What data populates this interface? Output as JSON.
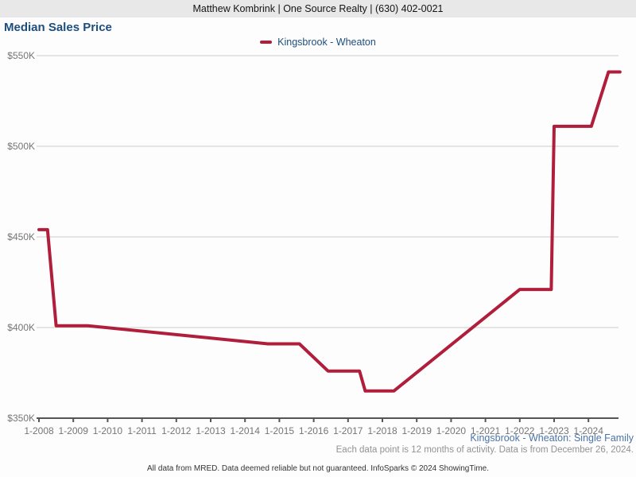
{
  "header": {
    "contact_line": "Matthew Kombrink | One Source Realty | (630) 402-0021"
  },
  "page": {
    "title": "Median Sales Price"
  },
  "legend": {
    "series_label": "Kingsbrook - Wheaton",
    "swatch_color": "#b01e3c"
  },
  "footnotes": {
    "series_scope": "Kingsbrook - Wheaton: Single Family",
    "data_note": "Each data point is 12 months of activity. Data is from December 26, 2024.",
    "disclaimer": "All data from MRED. Data deemed reliable but not guaranteed. InfoSparks © 2024 ShowingTime."
  },
  "chart_data": {
    "type": "line",
    "title": "Median Sales Price",
    "y_unit": "thousand USD",
    "ylim": [
      350,
      550
    ],
    "y_tick_values": [
      350,
      400,
      450,
      500,
      550
    ],
    "y_ticks": [
      "$350K",
      "$400K",
      "$450K",
      "$500K",
      "$550K"
    ],
    "x_ticks": [
      "1-2008",
      "1-2009",
      "1-2010",
      "1-2011",
      "1-2012",
      "1-2013",
      "1-2014",
      "1-2015",
      "1-2016",
      "1-2017",
      "1-2018",
      "1-2019",
      "1-2020",
      "1-2021",
      "1-2022",
      "1-2023",
      "1-2024"
    ],
    "x_range": [
      "2008-01",
      "2024-12"
    ],
    "grid": "horizontal",
    "legend_position": "top-center",
    "series": [
      {
        "name": "Kingsbrook - Wheaton",
        "color": "#b01e3c",
        "points": [
          [
            "2008-01",
            454
          ],
          [
            "2008-04",
            454
          ],
          [
            "2008-07",
            401
          ],
          [
            "2009-06",
            401
          ],
          [
            "2014-09",
            391
          ],
          [
            "2015-08",
            391
          ],
          [
            "2016-06",
            376
          ],
          [
            "2017-05",
            376
          ],
          [
            "2017-07",
            365
          ],
          [
            "2018-05",
            365
          ],
          [
            "2022-01",
            421
          ],
          [
            "2022-12",
            421
          ],
          [
            "2023-01",
            511
          ],
          [
            "2024-02",
            511
          ],
          [
            "2024-08",
            541
          ],
          [
            "2024-12",
            541
          ]
        ]
      }
    ]
  }
}
